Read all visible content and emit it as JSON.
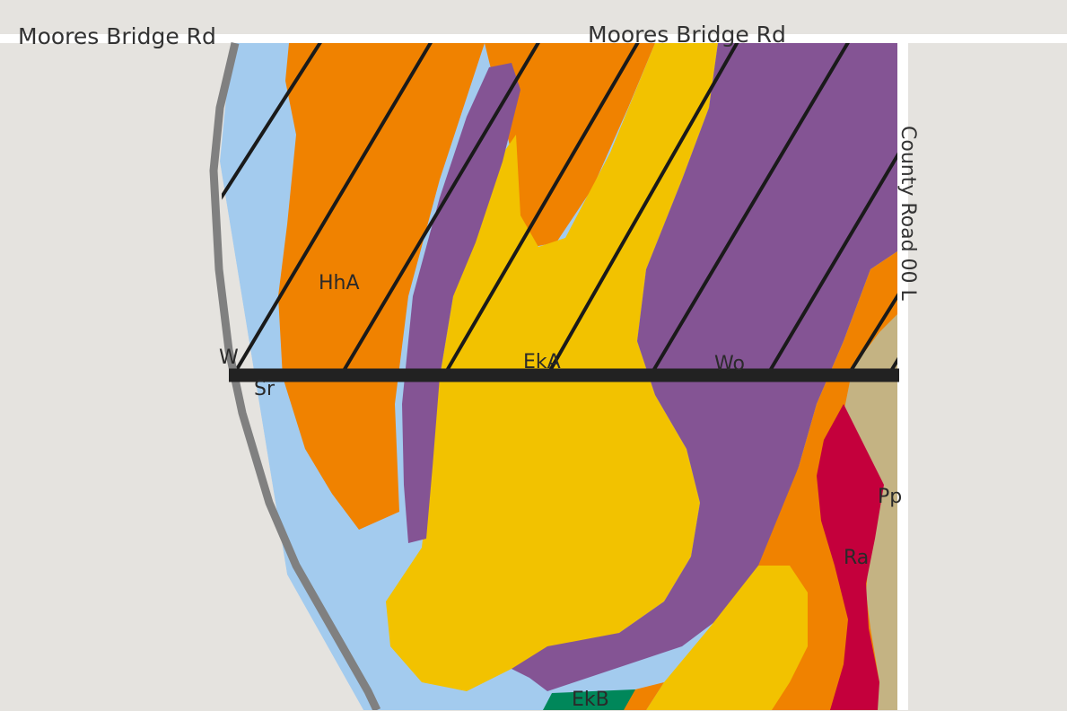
{
  "map": {
    "roads": {
      "top_left_label": "Moores Bridge Rd",
      "top_right_label": "Moores Bridge Rd",
      "right_vertical_label": "County Road 00 L"
    },
    "soil_units": [
      {
        "key": "HhA",
        "label": "HhA",
        "color": "#f08200"
      },
      {
        "key": "EkA",
        "label": "EkA",
        "color": "#f2c200"
      },
      {
        "key": "Wo",
        "label": "Wo",
        "color": "#845494"
      },
      {
        "key": "W",
        "label": "W",
        "color": "#a3cbee"
      },
      {
        "key": "Sr",
        "label": "Sr",
        "color": "#a3cbee"
      },
      {
        "key": "Pp",
        "label": "Pp",
        "color": "#c4b383"
      },
      {
        "key": "Ra",
        "label": "Ra",
        "color": "#c4003c"
      },
      {
        "key": "EkB",
        "label": "EkB",
        "color": "#00875a"
      }
    ],
    "colors": {
      "background": "#e5e3df",
      "road": "#ffffff",
      "boundary": "#808080",
      "hatch": "#1a1a1a",
      "transect_line": "#222222"
    },
    "hatched_area": true
  }
}
